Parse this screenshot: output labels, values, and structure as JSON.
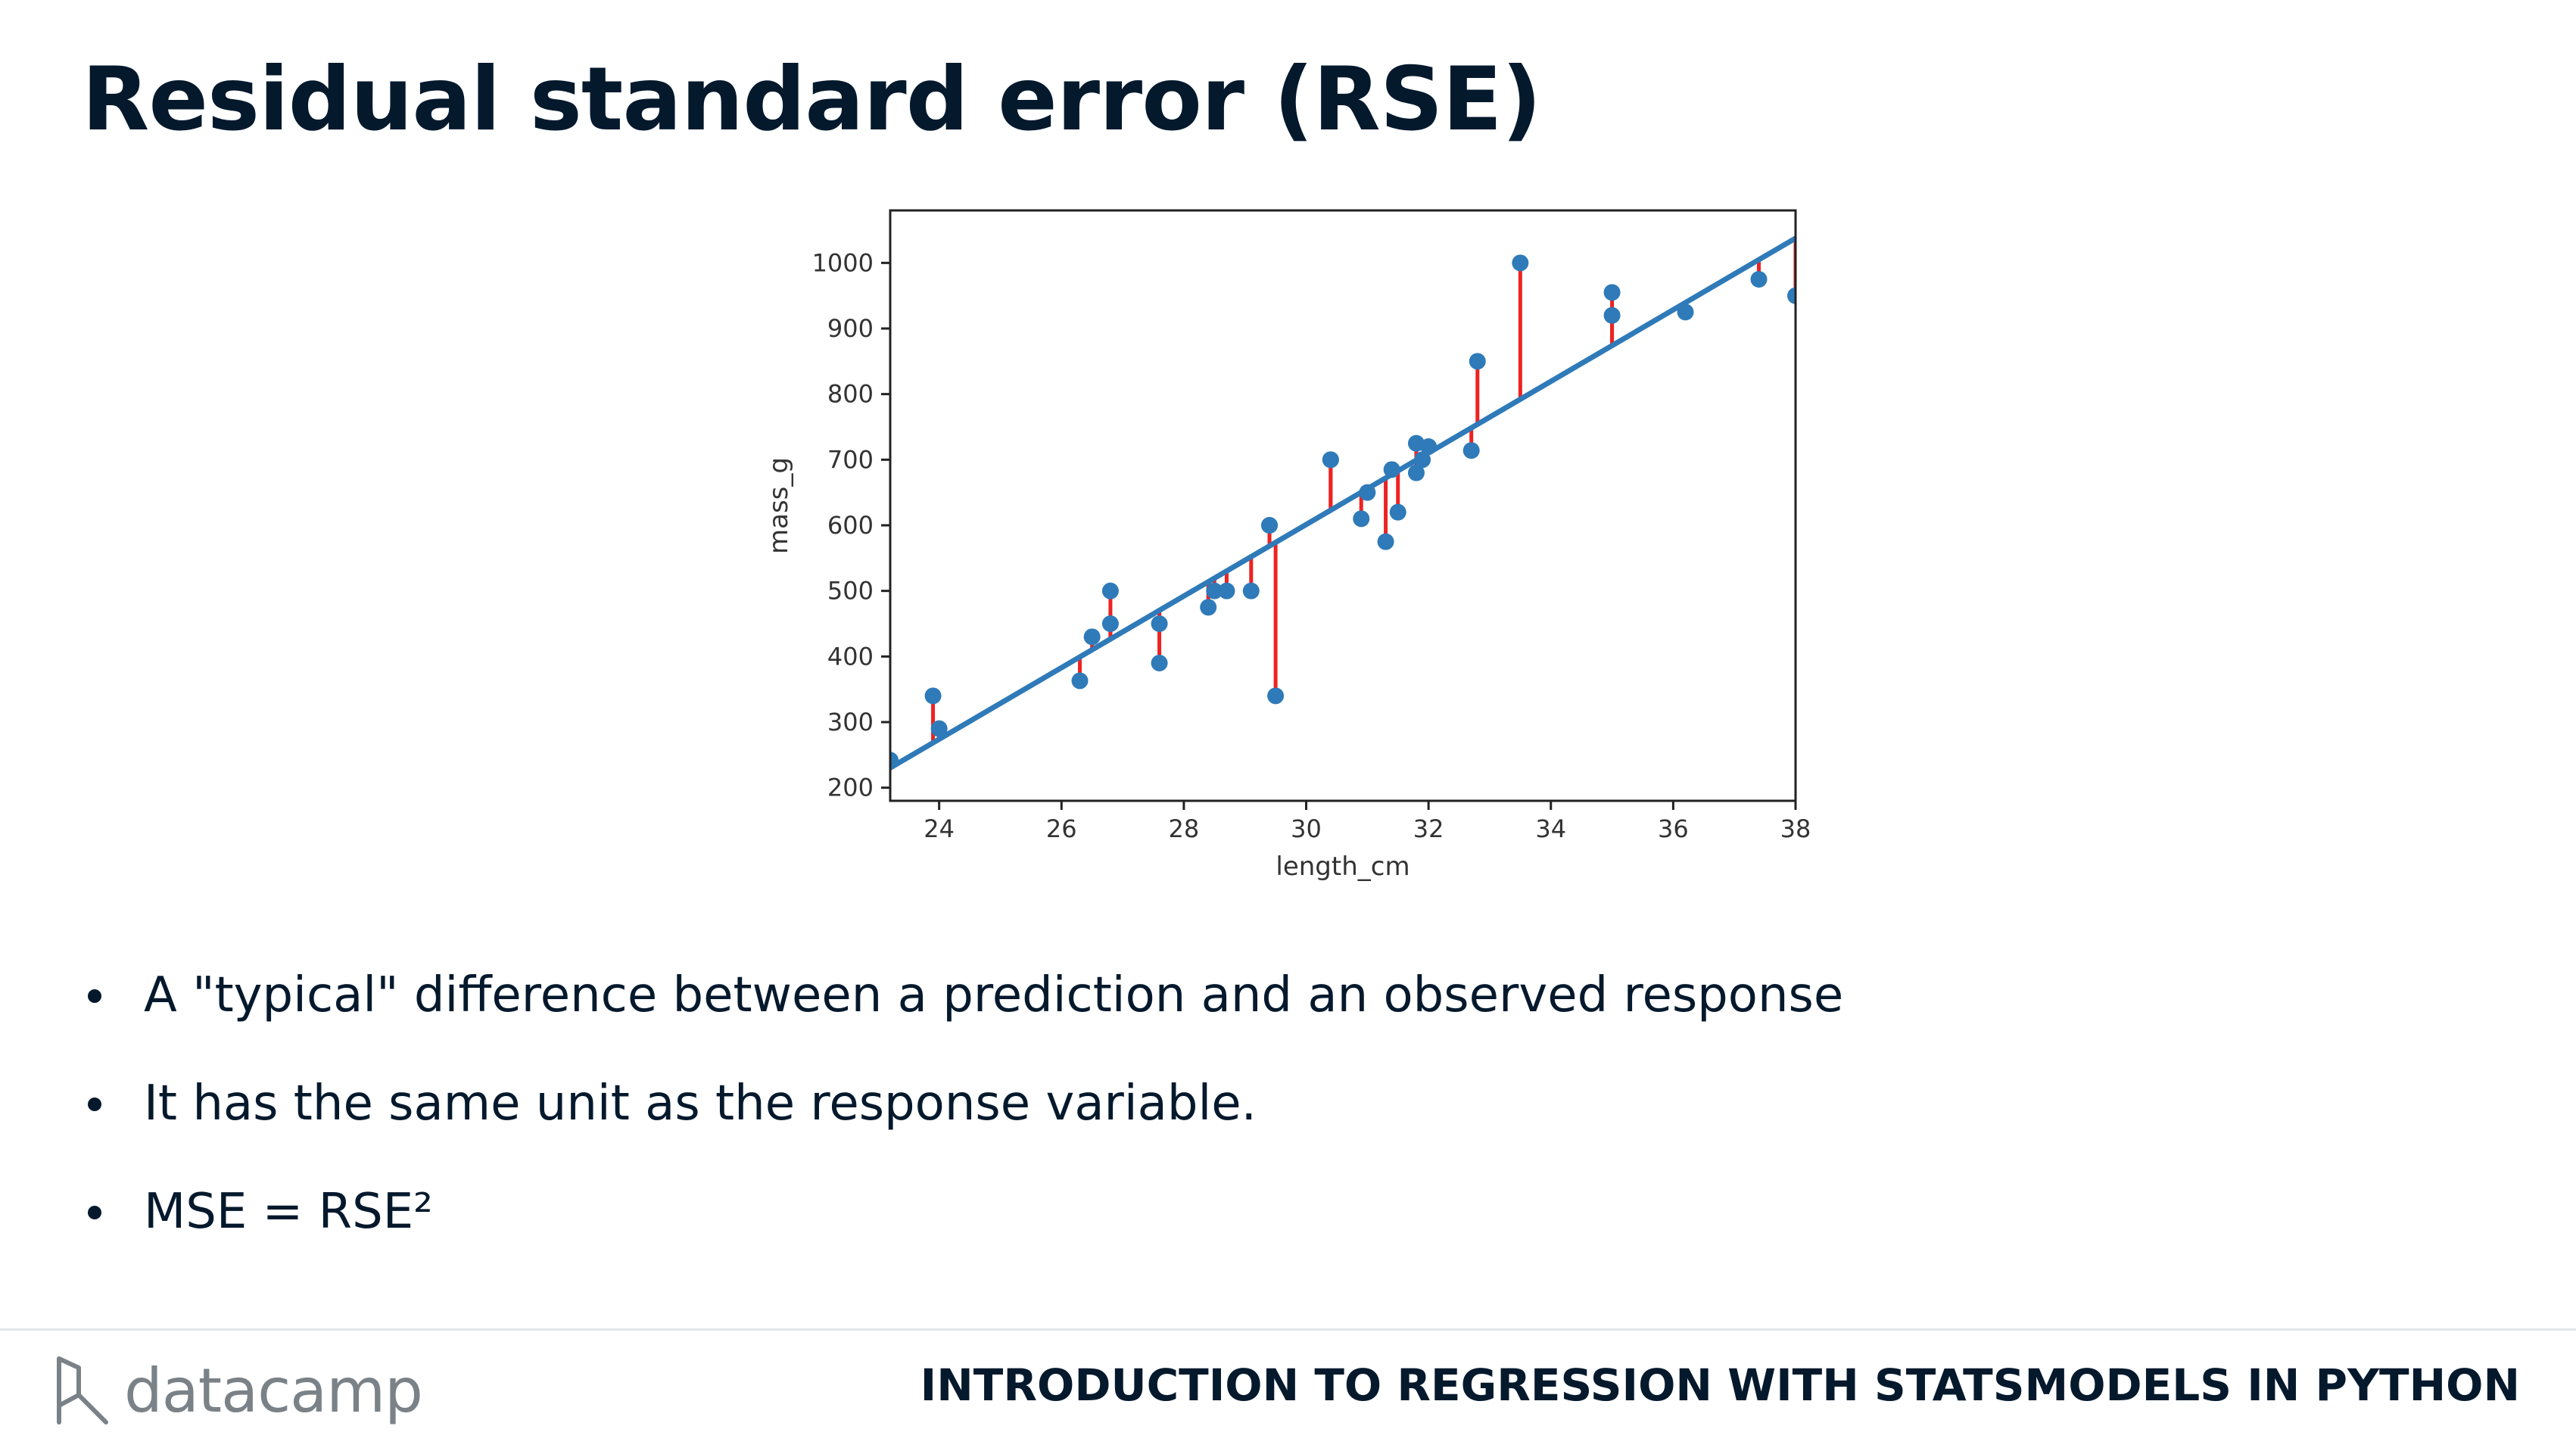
{
  "slide": {
    "title": "Residual standard error (RSE)",
    "bullets": [
      "A \"typical\" difference between a prediction and an observed response",
      "It has the same unit as the response variable.",
      "MSE = RSE²"
    ]
  },
  "footer": {
    "logo_text": "datacamp",
    "course_title": "INTRODUCTION TO REGRESSION WITH STATSMODELS IN PYTHON"
  },
  "colors": {
    "title": "#05192d",
    "point": "#2f7ab8",
    "regression_line": "#2f7ab8",
    "residual": "#ee2222",
    "logo": "#7a8288"
  },
  "chart_data": {
    "type": "scatter",
    "xlabel": "length_cm",
    "ylabel": "mass_g",
    "xlim": [
      23.2,
      38
    ],
    "ylim": [
      180,
      1080
    ],
    "xticks": [
      24,
      26,
      28,
      30,
      32,
      34,
      36,
      38
    ],
    "yticks": [
      200,
      300,
      400,
      500,
      600,
      700,
      800,
      900,
      1000
    ],
    "grid": false,
    "regression_line": {
      "intercept": -1035.3,
      "slope": 54.55
    },
    "points": [
      {
        "x": 23.2,
        "y": 242
      },
      {
        "x": 23.9,
        "y": 340
      },
      {
        "x": 24.0,
        "y": 290
      },
      {
        "x": 26.3,
        "y": 363
      },
      {
        "x": 26.5,
        "y": 430
      },
      {
        "x": 26.8,
        "y": 450
      },
      {
        "x": 26.8,
        "y": 500
      },
      {
        "x": 27.6,
        "y": 390
      },
      {
        "x": 27.6,
        "y": 450
      },
      {
        "x": 28.4,
        "y": 475
      },
      {
        "x": 28.5,
        "y": 500
      },
      {
        "x": 28.7,
        "y": 500
      },
      {
        "x": 29.1,
        "y": 500
      },
      {
        "x": 29.4,
        "y": 600
      },
      {
        "x": 29.4,
        "y": 600
      },
      {
        "x": 29.5,
        "y": 340
      },
      {
        "x": 30.4,
        "y": 700
      },
      {
        "x": 30.4,
        "y": 700
      },
      {
        "x": 30.9,
        "y": 610
      },
      {
        "x": 31.0,
        "y": 650
      },
      {
        "x": 31.3,
        "y": 575
      },
      {
        "x": 31.4,
        "y": 685
      },
      {
        "x": 31.5,
        "y": 620
      },
      {
        "x": 31.8,
        "y": 680
      },
      {
        "x": 31.8,
        "y": 725
      },
      {
        "x": 31.9,
        "y": 700
      },
      {
        "x": 32.0,
        "y": 720
      },
      {
        "x": 32.7,
        "y": 714
      },
      {
        "x": 32.8,
        "y": 850
      },
      {
        "x": 33.5,
        "y": 1000
      },
      {
        "x": 35.0,
        "y": 920
      },
      {
        "x": 35.0,
        "y": 955
      },
      {
        "x": 36.2,
        "y": 925
      },
      {
        "x": 37.4,
        "y": 975
      },
      {
        "x": 38.0,
        "y": 950
      }
    ]
  }
}
